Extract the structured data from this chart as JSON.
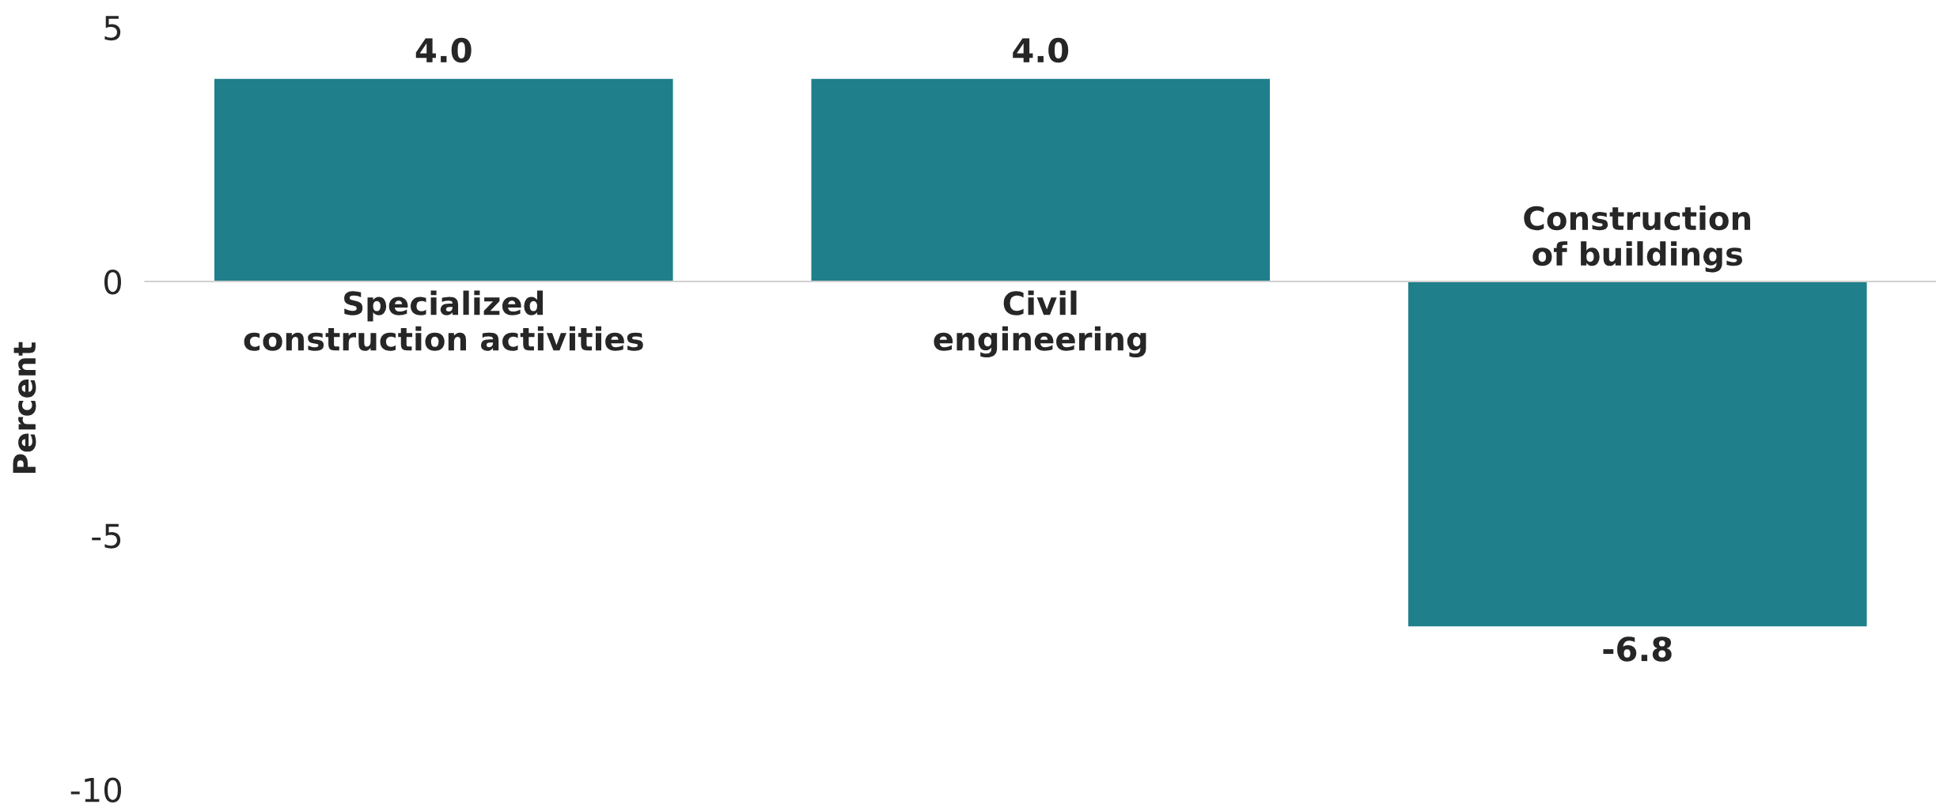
{
  "chart_data": {
    "type": "bar",
    "ylabel": "Percent",
    "categories": [
      "Specialized\nconstruction activities",
      "Civil\nengineering",
      "Construction\nof buildings"
    ],
    "values": [
      4.0,
      4.0,
      -6.8
    ],
    "color": "#1f7f8a",
    "value_labels": [
      "4.0",
      "4.0",
      "-6.8"
    ],
    "ylim": [
      -10,
      5
    ],
    "yticks": [
      -10,
      -5,
      0,
      5
    ],
    "grid": false
  }
}
